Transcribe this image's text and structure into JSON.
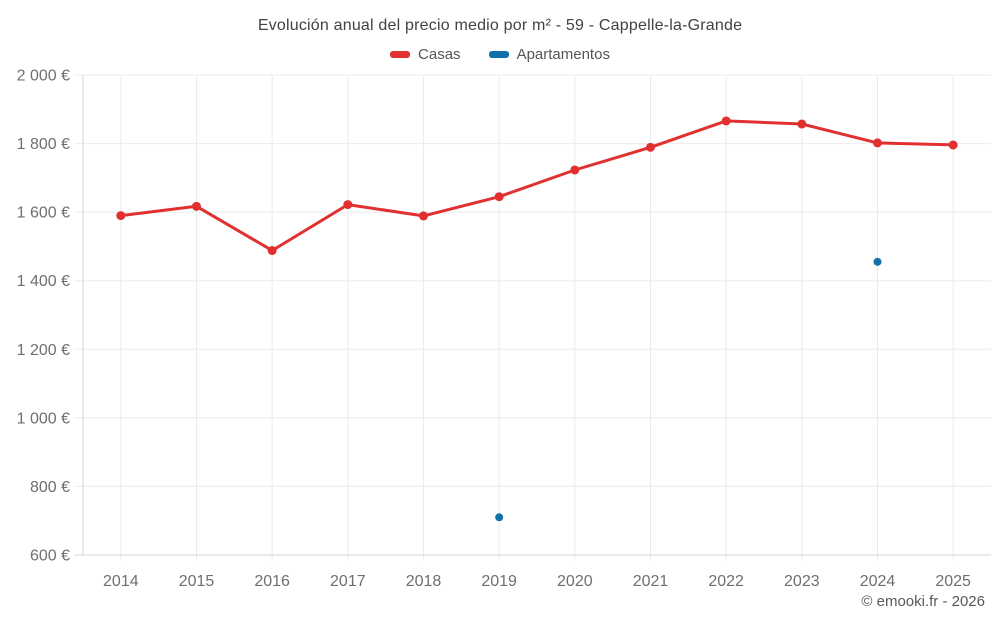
{
  "title": "Evolución anual del precio medio por m² - 59 - Cappelle-la-Grande",
  "legend": [
    {
      "label": "Casas",
      "color": "#e03030"
    },
    {
      "label": "Apartamentos",
      "color": "#1371a9"
    }
  ],
  "footer": "© emooki.fr - 2026",
  "colors": {
    "grid": "#ebebeb",
    "axis": "#d4d4d4",
    "tick_label": "#6f6f6f",
    "title_text": "#424242",
    "casas": "#e03030",
    "apartamentos": "#1371a9"
  },
  "chart_data": {
    "type": "line",
    "title": "Evolución anual del precio medio por m² - 59 - Cappelle-la-Grande",
    "categories": [
      "2014",
      "2015",
      "2016",
      "2017",
      "2018",
      "2019",
      "2020",
      "2021",
      "2022",
      "2023",
      "2024",
      "2025"
    ],
    "series": [
      {
        "name": "Casas",
        "color": "#e03030",
        "style": "line-markers",
        "values": [
          1590,
          1617,
          1488,
          1622,
          1589,
          1645,
          1723,
          1789,
          1866,
          1857,
          1802,
          1796
        ]
      },
      {
        "name": "Apartamentos",
        "color": "#1371a9",
        "style": "markers-only",
        "values": [
          null,
          null,
          null,
          null,
          null,
          710,
          null,
          null,
          null,
          null,
          1455,
          null
        ]
      }
    ],
    "xlabel": "",
    "ylabel": "",
    "ylim": [
      600,
      2000
    ],
    "yticks": [
      600,
      800,
      1000,
      1200,
      1400,
      1600,
      1800,
      2000
    ],
    "ytick_labels": [
      "600 €",
      "800 €",
      "1 000 €",
      "1 200 €",
      "1 400 €",
      "1 600 €",
      "1 800 €",
      "2 000 €"
    ],
    "grid": true,
    "legend_position": "top"
  }
}
